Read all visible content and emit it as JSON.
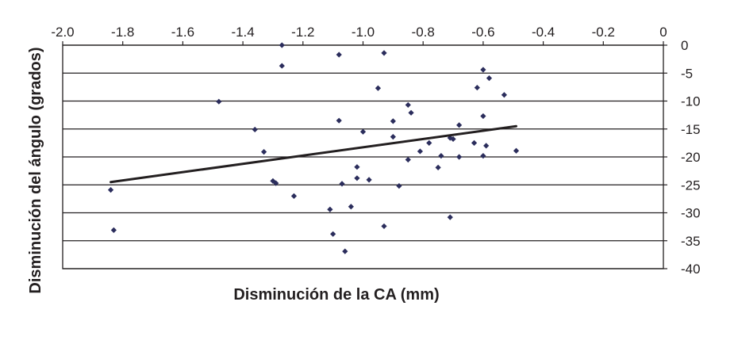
{
  "chart_data": {
    "type": "scatter",
    "title": "",
    "xlabel": "Disminución de la CA (mm)",
    "ylabel": "Disminución del ángulo (grados)",
    "xlim": [
      -2.0,
      0
    ],
    "ylim": [
      -40,
      0
    ],
    "x_ticks": [
      "-2.0",
      "-1.8",
      "-1.6",
      "-1.4",
      "-1.2",
      "-1.0",
      "-0.8",
      "-0.6",
      "-0.4",
      "-0.2",
      "0"
    ],
    "y_ticks": [
      "0",
      "-5",
      "-10",
      "-15",
      "-20",
      "-25",
      "-30",
      "-35",
      "-40"
    ],
    "x_axis_position": "top",
    "y_axis_position": "right",
    "grid": "horizontal",
    "marker_color": "#2b2d5c",
    "line_color": "#231f20",
    "points": [
      {
        "x": -1.27,
        "y": 0.0
      },
      {
        "x": -1.27,
        "y": -3.7
      },
      {
        "x": -1.08,
        "y": -1.7
      },
      {
        "x": -0.93,
        "y": -1.4
      },
      {
        "x": -0.6,
        "y": -4.4
      },
      {
        "x": -0.58,
        "y": -5.9
      },
      {
        "x": -0.62,
        "y": -7.6
      },
      {
        "x": -0.95,
        "y": -7.7
      },
      {
        "x": -0.53,
        "y": -8.9
      },
      {
        "x": -1.48,
        "y": -10.1
      },
      {
        "x": -0.85,
        "y": -10.7
      },
      {
        "x": -0.84,
        "y": -12.1
      },
      {
        "x": -0.6,
        "y": -12.7
      },
      {
        "x": -1.08,
        "y": -13.5
      },
      {
        "x": -0.9,
        "y": -13.6
      },
      {
        "x": -0.68,
        "y": -14.3
      },
      {
        "x": -1.36,
        "y": -15.1
      },
      {
        "x": -1.0,
        "y": -15.5
      },
      {
        "x": -0.9,
        "y": -16.4
      },
      {
        "x": -0.71,
        "y": -16.6
      },
      {
        "x": -0.7,
        "y": -16.8
      },
      {
        "x": -0.78,
        "y": -17.5
      },
      {
        "x": -0.63,
        "y": -17.5
      },
      {
        "x": -0.59,
        "y": -18.0
      },
      {
        "x": -0.49,
        "y": -18.9
      },
      {
        "x": -1.33,
        "y": -19.1
      },
      {
        "x": -0.81,
        "y": -19.0
      },
      {
        "x": -0.74,
        "y": -19.8
      },
      {
        "x": -0.68,
        "y": -20.0
      },
      {
        "x": -0.6,
        "y": -19.8
      },
      {
        "x": -0.85,
        "y": -20.5
      },
      {
        "x": -0.75,
        "y": -21.9
      },
      {
        "x": -1.02,
        "y": -21.8
      },
      {
        "x": -1.02,
        "y": -23.8
      },
      {
        "x": -0.98,
        "y": -24.1
      },
      {
        "x": -1.3,
        "y": -24.3
      },
      {
        "x": -1.29,
        "y": -24.7
      },
      {
        "x": -1.07,
        "y": -24.8
      },
      {
        "x": -0.88,
        "y": -25.2
      },
      {
        "x": -1.84,
        "y": -25.9
      },
      {
        "x": -1.23,
        "y": -27.0
      },
      {
        "x": -1.04,
        "y": -28.9
      },
      {
        "x": -1.11,
        "y": -29.4
      },
      {
        "x": -0.71,
        "y": -30.8
      },
      {
        "x": -0.93,
        "y": -32.4
      },
      {
        "x": -1.83,
        "y": -33.1
      },
      {
        "x": -1.1,
        "y": -33.8
      },
      {
        "x": -1.06,
        "y": -36.9
      }
    ],
    "trendline": {
      "x": [
        -1.84,
        -0.49
      ],
      "y": [
        -24.5,
        -14.5
      ]
    }
  }
}
